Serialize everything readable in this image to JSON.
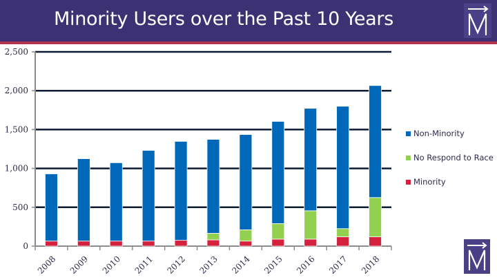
{
  "header": {
    "title": "Minority Users over the Past 10 Years",
    "logo_icon": "m-arrow-logo-icon"
  },
  "colors": {
    "header_bg": "#3b3173",
    "header_rule": "#b3334f",
    "non_minority": "#0068b8",
    "no_respond": "#92d050",
    "minority": "#d4213d",
    "gridline": "#0d1b33",
    "axis": "#8c8c8c"
  },
  "chart_data": {
    "type": "bar",
    "stacked": true,
    "title": "Minority Users over the Past 10 Years",
    "xlabel": "",
    "ylabel": "",
    "categories": [
      "2008",
      "2009",
      "2010",
      "2011",
      "2012",
      "2013",
      "2014",
      "2015",
      "2016",
      "2017",
      "2018"
    ],
    "series": [
      {
        "name": "Minority",
        "color": "#d4213d",
        "values": [
          65,
          65,
          65,
          65,
          75,
          80,
          65,
          90,
          90,
          120,
          120
        ]
      },
      {
        "name": "No Respond to Race",
        "color": "#92d050",
        "values": [
          0,
          0,
          0,
          0,
          0,
          85,
          145,
          200,
          365,
          105,
          505
        ]
      },
      {
        "name": "Non-Minority",
        "color": "#0068b8",
        "values": [
          865,
          1060,
          1008,
          1167,
          1273,
          1209,
          1226,
          1315,
          1318,
          1575,
          1441
        ]
      }
    ],
    "totals": [
      930,
      1125,
      1073,
      1232,
      1348,
      1374,
      1436,
      1605,
      1773,
      1800,
      2066
    ],
    "ylim": [
      0,
      2500
    ],
    "yticks": [
      0,
      500,
      1000,
      1500,
      2000,
      2500
    ],
    "ytick_labels": [
      "0",
      "500",
      "1,000",
      "1,500",
      "2,000",
      "2,500"
    ],
    "grid": true,
    "legend": {
      "position": "right",
      "entries": [
        "Non-Minority",
        "No Respond to Race",
        "Minority"
      ]
    }
  }
}
